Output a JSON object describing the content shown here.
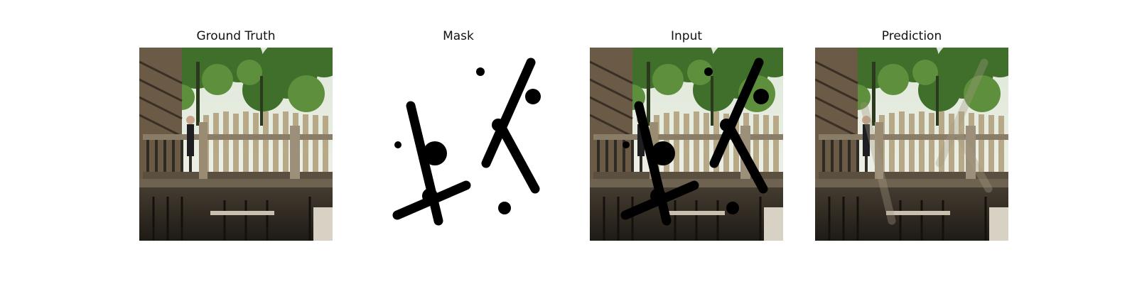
{
  "figure": {
    "panels": [
      {
        "title": "Ground Truth",
        "kind": "photo"
      },
      {
        "title": "Mask",
        "kind": "mask"
      },
      {
        "title": "Input",
        "kind": "masked-photo"
      },
      {
        "title": "Prediction",
        "kind": "inpainted-photo"
      }
    ]
  }
}
